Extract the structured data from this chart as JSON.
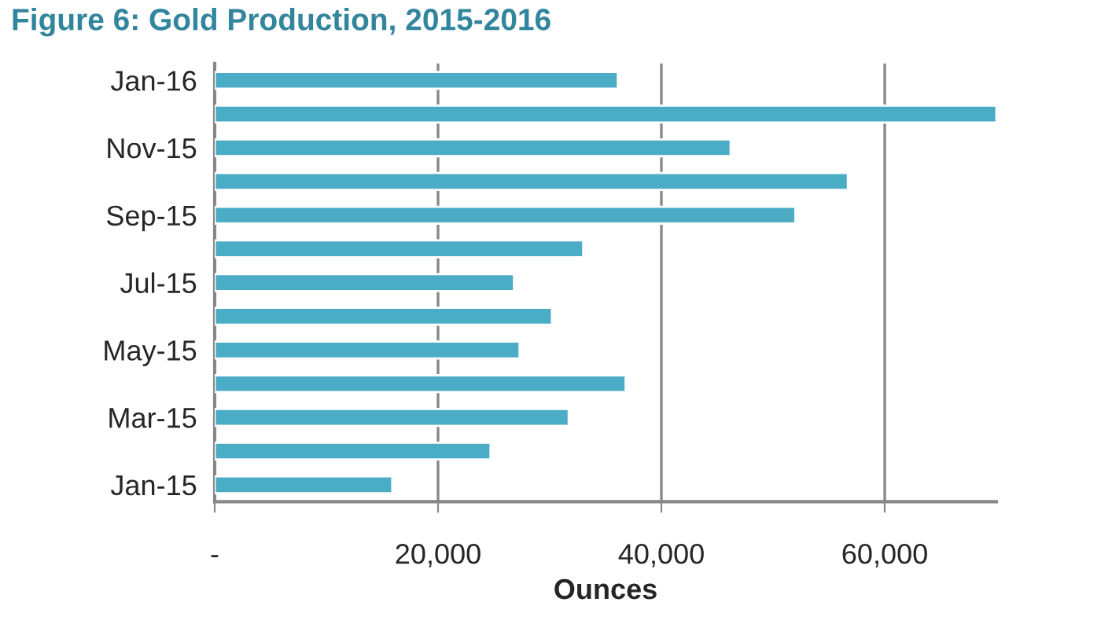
{
  "chart_data": {
    "type": "bar",
    "orientation": "horizontal",
    "title": "Figure 6: Gold Production, 2015-2016",
    "xlabel": "Ounces",
    "categories": [
      "Jan-16",
      null,
      "Nov-15",
      null,
      "Sep-15",
      null,
      "Jul-15",
      null,
      "May-15",
      null,
      "Mar-15",
      null,
      "Jan-15"
    ],
    "values": [
      36100,
      70000,
      46200,
      56700,
      52000,
      33000,
      26800,
      30200,
      27300,
      36800,
      31700,
      24700,
      15900
    ],
    "color": "#4bacc6",
    "xlim": [
      0,
      70000
    ],
    "xticks": [
      {
        "value": 0,
        "label": "-"
      },
      {
        "value": 20000,
        "label": "20,000"
      },
      {
        "value": 40000,
        "label": "40,000"
      },
      {
        "value": 60000,
        "label": "60,000"
      }
    ],
    "grid": "x"
  }
}
